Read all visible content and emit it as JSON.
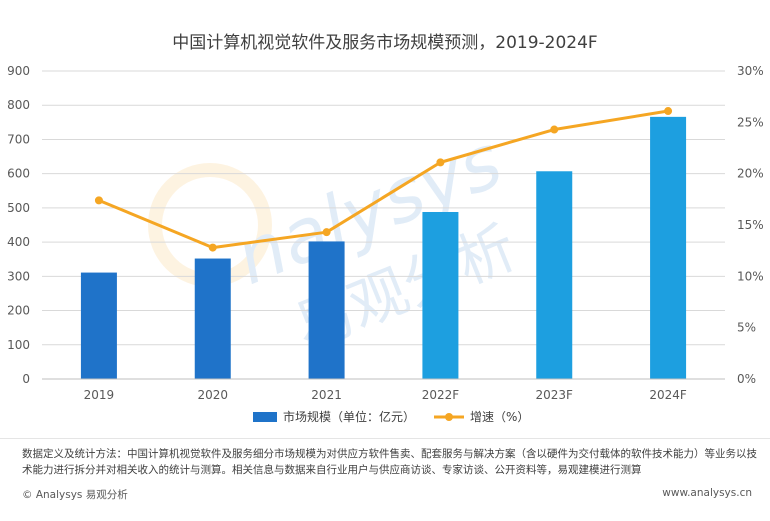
{
  "title": "中国计算机视觉软件及服务市场规模预测，2019-2024F",
  "chart_data": {
    "type": "bar",
    "categories": [
      "2019",
      "2020",
      "2021",
      "2022F",
      "2023F",
      "2024F"
    ],
    "series": [
      {
        "name": "市场规模（单位：亿元）",
        "type": "bar",
        "axis": "left",
        "values": [
          311,
          352,
          402,
          488,
          607,
          766
        ]
      },
      {
        "name": "增速（%）",
        "type": "line",
        "axis": "right",
        "values": [
          17.4,
          12.8,
          14.3,
          21.1,
          24.3,
          26.1
        ]
      }
    ],
    "y_left": {
      "min": 0,
      "max": 900,
      "step": 100,
      "ticks": [
        "0",
        "100",
        "200",
        "300",
        "400",
        "500",
        "600",
        "700",
        "800",
        "900"
      ]
    },
    "y_right": {
      "min": 0,
      "max": 30,
      "step": 5,
      "ticks": [
        "0%",
        "5%",
        "10%",
        "15%",
        "20%",
        "25%",
        "30%"
      ]
    },
    "grid": true,
    "legend_position": "bottom",
    "colors": {
      "bar_history": "#1f73c9",
      "bar_forecast": "#1d9fe0",
      "line": "#f5a623",
      "grid": "#d9d9d9"
    }
  },
  "watermark": {
    "text_en": "Analysys",
    "text_cn": "易观分析"
  },
  "definition": "数据定义及统计方法：中国计算机视觉软件及服务细分市场规模为对供应方软件售卖、配套服务与解决方案（含以硬件为交付载体的软件技术能力）等业务以技术能力进行拆分并对相关收入的统计与测算。相关信息与数据来自行业用户与供应商访谈、专家访谈、公开资料等，易观建模进行测算",
  "footer": {
    "left": "© Analysys 易观分析",
    "right": "www.analysys.cn"
  }
}
